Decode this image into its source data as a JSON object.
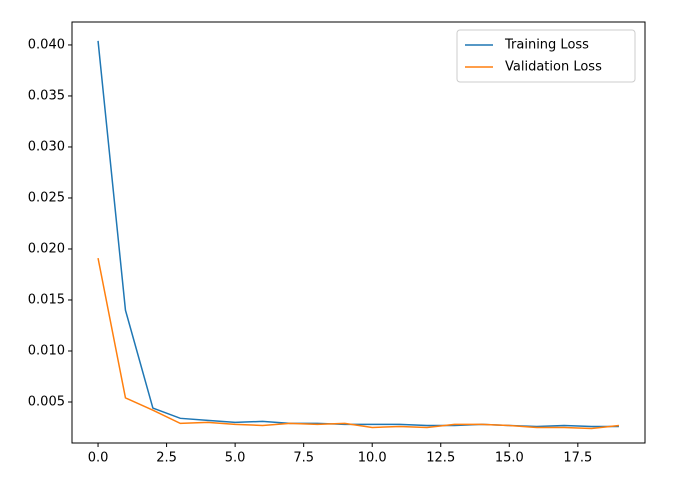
{
  "chart_data": {
    "type": "line",
    "x": [
      0,
      1,
      2,
      3,
      4,
      5,
      6,
      7,
      8,
      9,
      10,
      11,
      12,
      13,
      14,
      15,
      16,
      17,
      18,
      19
    ],
    "series": [
      {
        "name": "Training Loss",
        "color": "#1f77b4",
        "values": [
          0.0404,
          0.014,
          0.0044,
          0.0034,
          0.0032,
          0.003,
          0.0031,
          0.0029,
          0.0029,
          0.0028,
          0.0028,
          0.0028,
          0.0027,
          0.0027,
          0.0028,
          0.0027,
          0.0026,
          0.0027,
          0.0026,
          0.0026
        ]
      },
      {
        "name": "Validation Loss",
        "color": "#ff7f0e",
        "values": [
          0.0191,
          0.0054,
          0.0042,
          0.0029,
          0.003,
          0.0028,
          0.0027,
          0.0029,
          0.0028,
          0.0029,
          0.0025,
          0.0026,
          0.0025,
          0.0028,
          0.0028,
          0.0027,
          0.0025,
          0.0025,
          0.0024,
          0.0027
        ]
      }
    ],
    "xlim": [
      -0.95,
      19.95
    ],
    "ylim": [
      0.00098,
      0.04225
    ],
    "xticks": [
      {
        "value": 0,
        "label": "0.0"
      },
      2.5,
      {
        "value": 5,
        "label": "5.0"
      },
      7.5,
      {
        "value": 10,
        "label": "10.0"
      },
      12.5,
      {
        "value": 15,
        "label": "15.0"
      },
      17.5
    ],
    "yticks": [
      0.005,
      {
        "value": 0.01,
        "label": "0.010"
      },
      0.015,
      {
        "value": 0.02,
        "label": "0.020"
      },
      0.025,
      {
        "value": 0.03,
        "label": "0.030"
      },
      0.035,
      {
        "value": 0.04,
        "label": "0.040"
      }
    ],
    "legend": "upper right"
  }
}
